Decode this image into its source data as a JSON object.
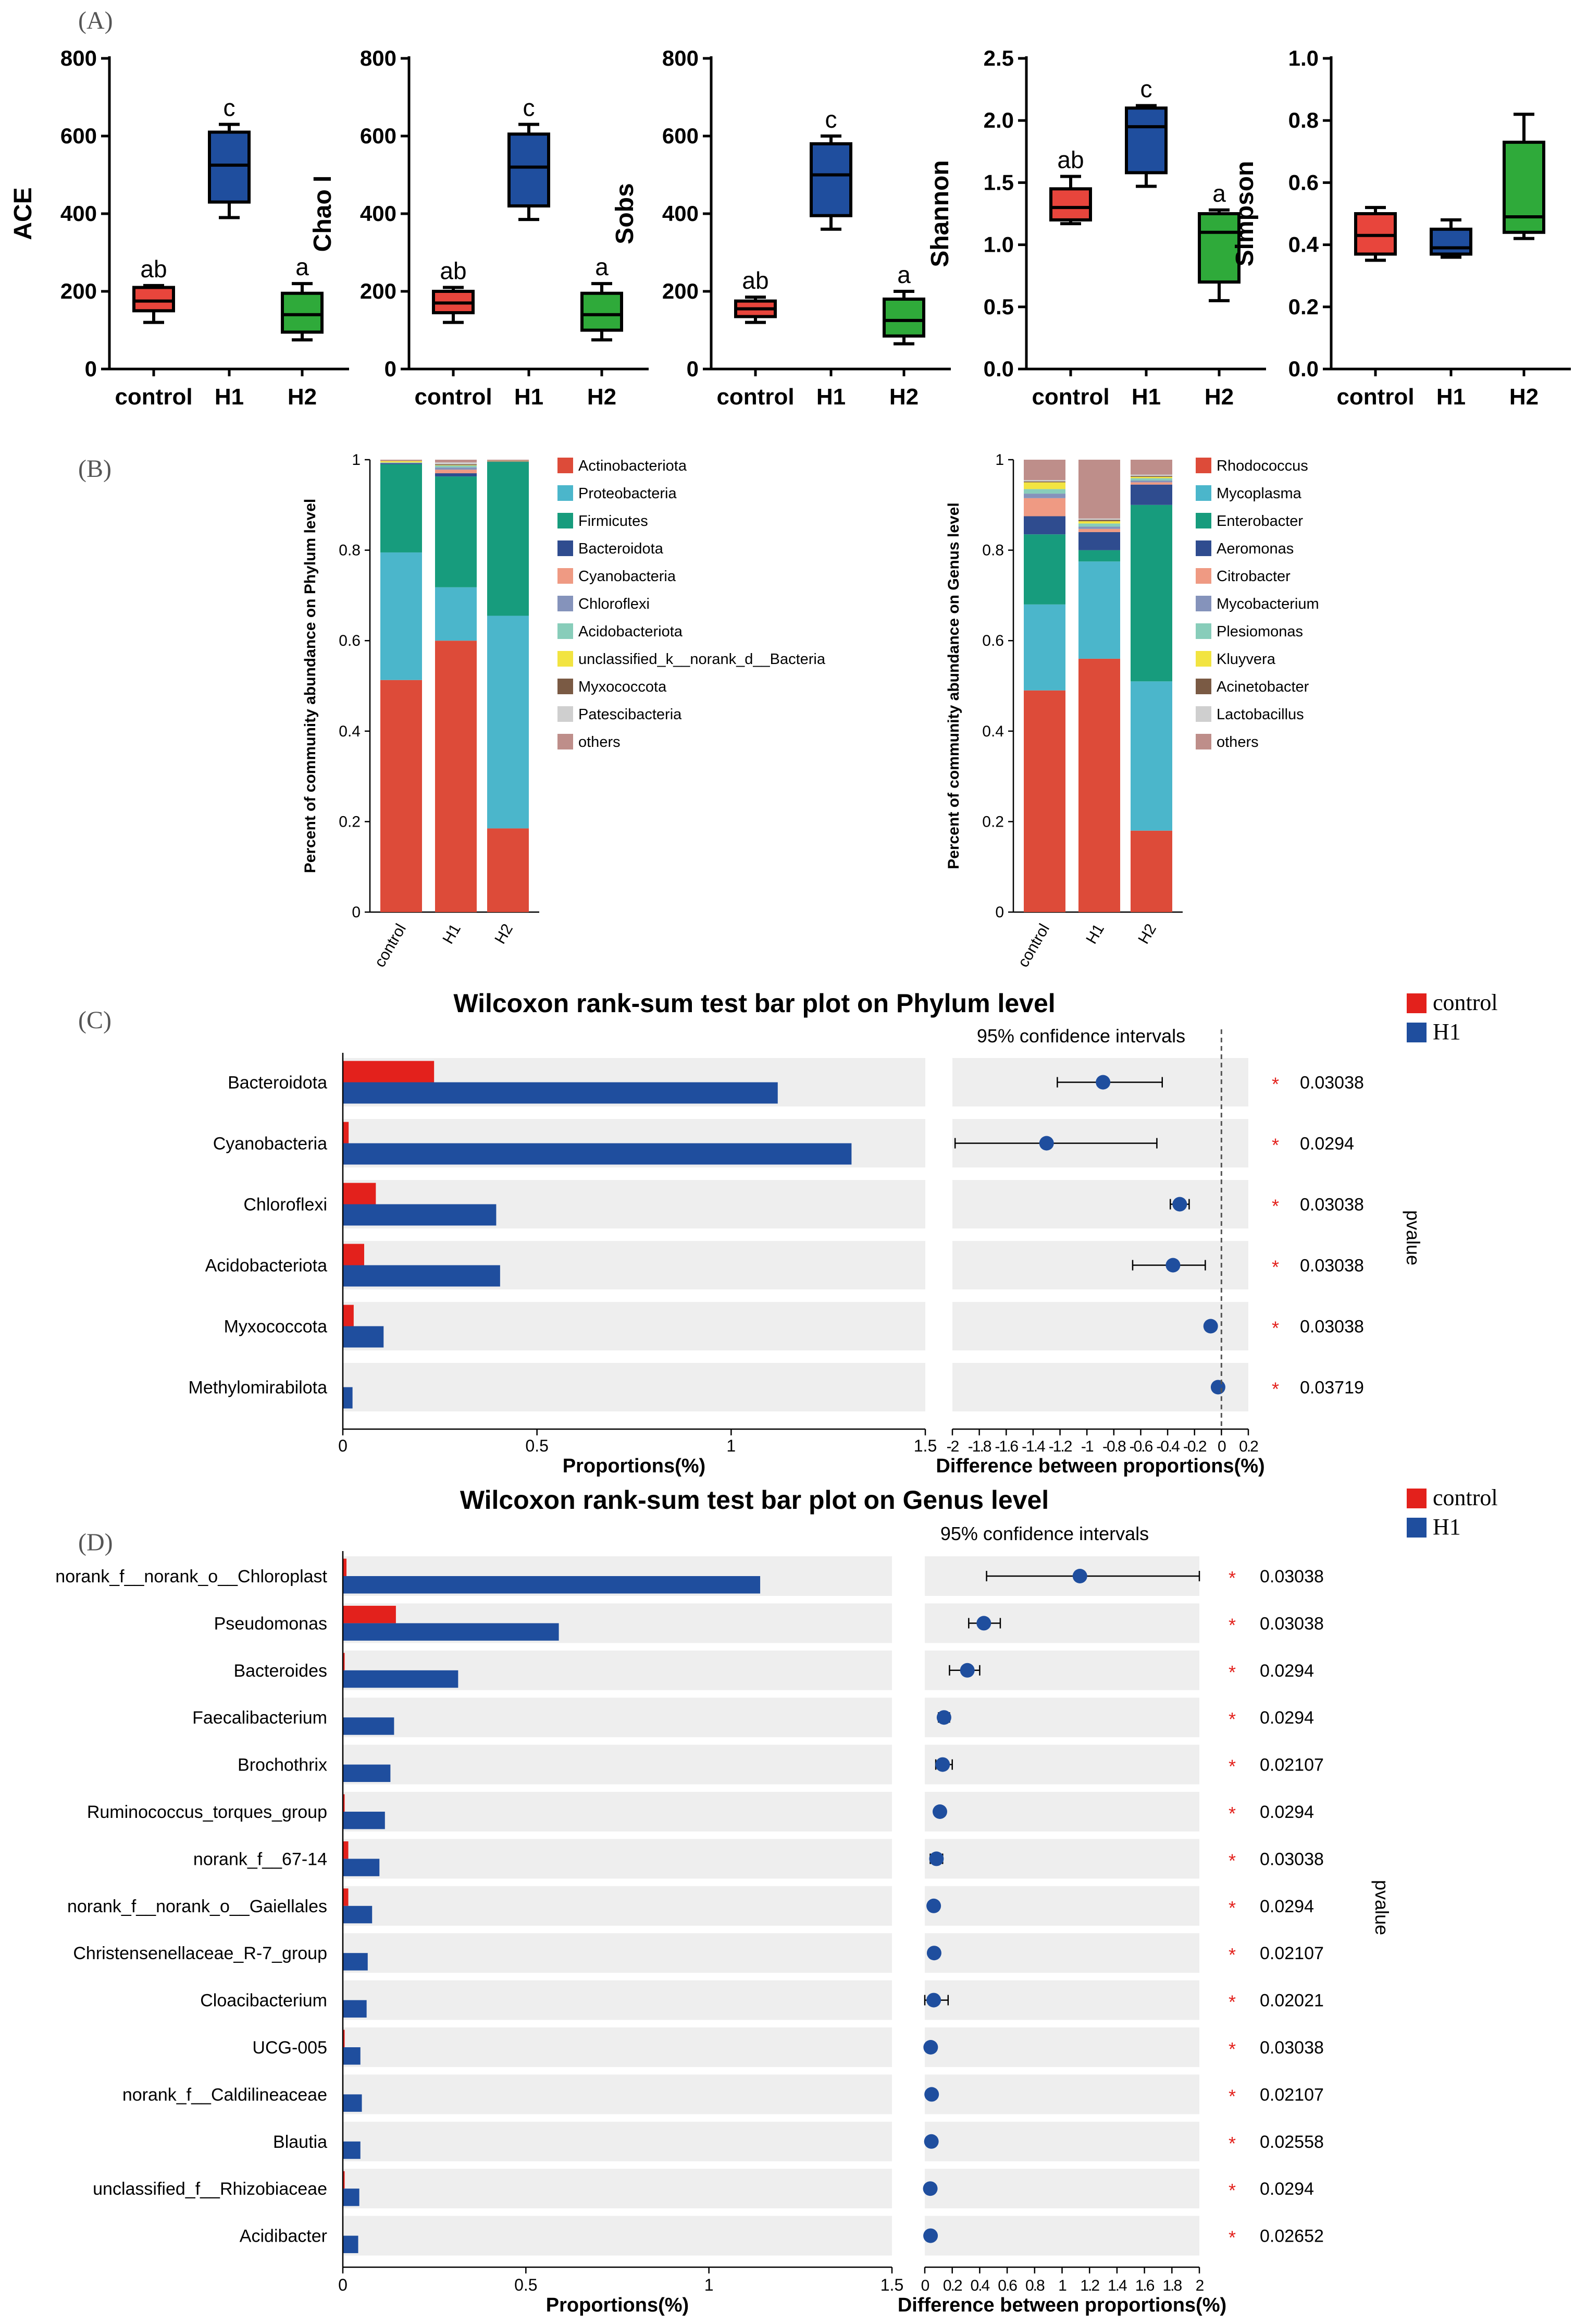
{
  "panel_labels": {
    "A": "(A)",
    "B": "(B)",
    "C": "(C)",
    "D": "(D)"
  },
  "colors": {
    "control": "#E8453C",
    "H1": "#1F4E9E",
    "H2": "#2FAA3A",
    "wilcox_control": "#E3211C",
    "wilcox_H1": "#1F4E9E",
    "stack": [
      "#DD4B39",
      "#4BB6CB",
      "#179C7D",
      "#2F4C8F",
      "#EF9A83",
      "#8593BB",
      "#88CDBA",
      "#F2E441",
      "#7A5A44",
      "#CFCFCF",
      "#BE8E8A"
    ]
  },
  "chart_data": [
    {
      "type": "box",
      "id": "ace",
      "ylabel": "ACE",
      "ylim": [
        0,
        800
      ],
      "yticks": [
        "0",
        "200",
        "400",
        "600",
        "800"
      ],
      "categories": [
        "control",
        "H1",
        "H2"
      ],
      "boxes": [
        {
          "min": 120,
          "q1": 150,
          "median": 175,
          "q3": 210,
          "max": 215,
          "letter": "ab"
        },
        {
          "min": 390,
          "q1": 430,
          "median": 525,
          "q3": 610,
          "max": 630,
          "letter": "c"
        },
        {
          "min": 75,
          "q1": 95,
          "median": 140,
          "q3": 195,
          "max": 220,
          "letter": "a"
        }
      ]
    },
    {
      "type": "box",
      "id": "chao",
      "ylabel": "Chao I",
      "ylim": [
        0,
        800
      ],
      "yticks": [
        "0",
        "200",
        "400",
        "600",
        "800"
      ],
      "categories": [
        "control",
        "H1",
        "H2"
      ],
      "boxes": [
        {
          "min": 120,
          "q1": 145,
          "median": 170,
          "q3": 200,
          "max": 210,
          "letter": "ab"
        },
        {
          "min": 385,
          "q1": 420,
          "median": 520,
          "q3": 605,
          "max": 630,
          "letter": "c"
        },
        {
          "min": 75,
          "q1": 100,
          "median": 140,
          "q3": 195,
          "max": 220,
          "letter": "a"
        }
      ]
    },
    {
      "type": "box",
      "id": "sobs",
      "ylabel": "Sobs",
      "ylim": [
        0,
        800
      ],
      "yticks": [
        "0",
        "200",
        "400",
        "600",
        "800"
      ],
      "categories": [
        "control",
        "H1",
        "H2"
      ],
      "boxes": [
        {
          "min": 120,
          "q1": 135,
          "median": 155,
          "q3": 175,
          "max": 185,
          "letter": "ab"
        },
        {
          "min": 360,
          "q1": 395,
          "median": 500,
          "q3": 580,
          "max": 600,
          "letter": "c"
        },
        {
          "min": 65,
          "q1": 85,
          "median": 125,
          "q3": 180,
          "max": 200,
          "letter": "a"
        }
      ]
    },
    {
      "type": "box",
      "id": "shannon",
      "ylabel": "Shannon",
      "ylim": [
        0,
        2.5
      ],
      "yticks": [
        "0.0",
        "0.5",
        "1.0",
        "1.5",
        "2.0",
        "2.5"
      ],
      "categories": [
        "control",
        "H1",
        "H2"
      ],
      "boxes": [
        {
          "min": 1.17,
          "q1": 1.2,
          "median": 1.3,
          "q3": 1.45,
          "max": 1.55,
          "letter": "ab"
        },
        {
          "min": 1.47,
          "q1": 1.58,
          "median": 1.95,
          "q3": 2.1,
          "max": 2.12,
          "letter": "c"
        },
        {
          "min": 0.55,
          "q1": 0.7,
          "median": 1.1,
          "q3": 1.25,
          "max": 1.28,
          "letter": "a"
        }
      ]
    },
    {
      "type": "box",
      "id": "simpson",
      "ylabel": "Simpson",
      "ylim": [
        0,
        1.0
      ],
      "yticks": [
        "0.0",
        "0.2",
        "0.4",
        "0.6",
        "0.8",
        "1.0"
      ],
      "categories": [
        "control",
        "H1",
        "H2"
      ],
      "boxes": [
        {
          "min": 0.35,
          "q1": 0.37,
          "median": 0.43,
          "q3": 0.5,
          "max": 0.52,
          "letter": ""
        },
        {
          "min": 0.36,
          "q1": 0.37,
          "median": 0.39,
          "q3": 0.45,
          "max": 0.48,
          "letter": ""
        },
        {
          "min": 0.42,
          "q1": 0.44,
          "median": 0.49,
          "q3": 0.73,
          "max": 0.82,
          "letter": ""
        }
      ]
    },
    {
      "type": "stacked-bar",
      "id": "phylum",
      "ylabel": "Percent of community abundance on Phylum level",
      "ylim": [
        0,
        1
      ],
      "yticks": [
        "0",
        "0.2",
        "0.4",
        "0.6",
        "0.8",
        "1"
      ],
      "categories": [
        "control",
        "H1",
        "H2"
      ],
      "legend": [
        "Actinobacteriota",
        "Proteobacteria",
        "Firmicutes",
        "Bacteroidota",
        "Cyanobacteria",
        "Chloroflexi",
        "Acidobacteriota",
        "unclassified_k__norank_d__Bacteria",
        "Myxococcota",
        "Patescibacteria",
        "others"
      ],
      "values": [
        [
          0.513,
          0.6,
          0.185
        ],
        [
          0.282,
          0.118,
          0.47
        ],
        [
          0.195,
          0.245,
          0.34
        ],
        [
          0.002,
          0.007,
          0.001
        ],
        [
          0.0,
          0.008,
          0.0
        ],
        [
          0.001,
          0.005,
          0.0
        ],
        [
          0.001,
          0.004,
          0.0
        ],
        [
          0.003,
          0.001,
          0.001
        ],
        [
          0.0,
          0.002,
          0.0
        ],
        [
          0.0,
          0.004,
          0.0
        ],
        [
          0.003,
          0.006,
          0.003
        ]
      ]
    },
    {
      "type": "stacked-bar",
      "id": "genus",
      "ylabel": "Percent of community abundance on Genus level",
      "ylim": [
        0,
        1
      ],
      "yticks": [
        "0",
        "0.2",
        "0.4",
        "0.6",
        "0.8",
        "1"
      ],
      "categories": [
        "control",
        "H1",
        "H2"
      ],
      "legend": [
        "Rhodococcus",
        "Mycoplasma",
        "Enterobacter",
        "Aeromonas",
        "Citrobacter",
        "Mycobacterium",
        "Plesiomonas",
        "Kluyvera",
        "Acinetobacter",
        "Lactobacillus",
        "others"
      ],
      "values": [
        [
          0.49,
          0.56,
          0.18
        ],
        [
          0.19,
          0.215,
          0.33
        ],
        [
          0.155,
          0.025,
          0.39
        ],
        [
          0.04,
          0.04,
          0.045
        ],
        [
          0.04,
          0.007,
          0.005
        ],
        [
          0.01,
          0.005,
          0.004
        ],
        [
          0.01,
          0.007,
          0.005
        ],
        [
          0.015,
          0.005,
          0.003
        ],
        [
          0.002,
          0.003,
          0.002
        ],
        [
          0.003,
          0.003,
          0.003
        ],
        [
          0.045,
          0.13,
          0.033
        ]
      ]
    },
    {
      "type": "wilcoxon",
      "id": "wilcox-phylum",
      "title": "Wilcoxon rank-sum test bar plot on Phylum level",
      "legend": [
        "control",
        "H1"
      ],
      "ci_label": "95% confidence intervals",
      "xlabel_left": "Proportions(%)",
      "xlabel_right": "Difference between proportions(%)",
      "pvalue_label": "pvalue",
      "left_ticks": [
        "0",
        "0.5",
        "1",
        "1.5"
      ],
      "left_max": 1.5,
      "right_ticks": [
        "-2",
        "-1.8",
        "-1.6",
        "-1.4",
        "-1.2",
        "-1",
        "-0.8",
        "-0.6",
        "-0.4",
        "-0.2",
        "0",
        "0.2"
      ],
      "right_range": [
        -2.0,
        0.2
      ],
      "rows": [
        {
          "name": "Bacteroidota",
          "control": 0.235,
          "H1": 1.12,
          "diff": -0.88,
          "lo": -1.22,
          "hi": -0.44,
          "p": "0.03038",
          "star": "*"
        },
        {
          "name": "Cyanobacteria",
          "control": 0.015,
          "H1": 1.31,
          "diff": -1.3,
          "lo": -1.98,
          "hi": -0.48,
          "p": "0.0294",
          "star": "*"
        },
        {
          "name": "Chloroflexi",
          "control": 0.085,
          "H1": 0.395,
          "diff": -0.31,
          "lo": -0.38,
          "hi": -0.24,
          "p": "0.03038",
          "star": "*"
        },
        {
          "name": "Acidobacteriota",
          "control": 0.055,
          "H1": 0.405,
          "diff": -0.36,
          "lo": -0.66,
          "hi": -0.12,
          "p": "0.03038",
          "star": "*"
        },
        {
          "name": "Myxococcota",
          "control": 0.028,
          "H1": 0.105,
          "diff": -0.08,
          "lo": -0.1,
          "hi": -0.06,
          "p": "0.03038",
          "star": "*"
        },
        {
          "name": "Methylomirabilota",
          "control": 0.0,
          "H1": 0.025,
          "diff": -0.025,
          "lo": -0.03,
          "hi": -0.02,
          "p": "0.03719",
          "star": "*"
        }
      ]
    },
    {
      "type": "wilcoxon",
      "id": "wilcox-genus",
      "title": "Wilcoxon rank-sum test bar plot on Genus level",
      "legend": [
        "control",
        "H1"
      ],
      "ci_label": "95% confidence intervals",
      "xlabel_left": "Proportions(%)",
      "xlabel_right": "Difference between proportions(%)",
      "pvalue_label": "pvalue",
      "left_ticks": [
        "0",
        "0.5",
        "1",
        "1.5"
      ],
      "left_max": 1.5,
      "right_ticks": [
        "0",
        "0.2",
        "0.4",
        "0.6",
        "0.8",
        "1",
        "1.2",
        "1.4",
        "1.6",
        "1.8",
        "2"
      ],
      "right_range": [
        0,
        2.0
      ],
      "rows": [
        {
          "name": "norank_f__norank_o__Chloroplast",
          "control": 0.01,
          "H1": 1.14,
          "diff": 1.13,
          "lo": 0.45,
          "hi": 2.0,
          "p": "0.03038",
          "star": "*"
        },
        {
          "name": "Pseudomonas",
          "control": 0.145,
          "H1": 0.59,
          "diff": 0.43,
          "lo": 0.32,
          "hi": 0.55,
          "p": "0.03038",
          "star": "*"
        },
        {
          "name": "Bacteroides",
          "control": 0.005,
          "H1": 0.315,
          "diff": 0.31,
          "lo": 0.18,
          "hi": 0.4,
          "p": "0.0294",
          "star": "*"
        },
        {
          "name": "Faecalibacterium",
          "control": 0.0,
          "H1": 0.14,
          "diff": 0.14,
          "lo": 0.1,
          "hi": 0.18,
          "p": "0.0294",
          "star": "*"
        },
        {
          "name": "Brochothrix",
          "control": 0.0,
          "H1": 0.13,
          "diff": 0.13,
          "lo": 0.08,
          "hi": 0.2,
          "p": "0.02107",
          "star": "*"
        },
        {
          "name": "Ruminococcus_torques_group",
          "control": 0.005,
          "H1": 0.115,
          "diff": 0.11,
          "lo": 0.08,
          "hi": 0.14,
          "p": "0.0294",
          "star": "*"
        },
        {
          "name": "norank_f__67-14",
          "control": 0.015,
          "H1": 0.1,
          "diff": 0.085,
          "lo": 0.04,
          "hi": 0.13,
          "p": "0.03038",
          "star": "*"
        },
        {
          "name": "norank_f__norank_o__Gaiellales",
          "control": 0.015,
          "H1": 0.08,
          "diff": 0.065,
          "lo": 0.04,
          "hi": 0.09,
          "p": "0.0294",
          "star": "*"
        },
        {
          "name": "Christensenellaceae_R-7_group",
          "control": 0.0,
          "H1": 0.068,
          "diff": 0.068,
          "lo": 0.04,
          "hi": 0.09,
          "p": "0.02107",
          "star": "*"
        },
        {
          "name": "Cloacibacterium",
          "control": 0.0,
          "H1": 0.065,
          "diff": 0.065,
          "lo": 0.0,
          "hi": 0.17,
          "p": "0.02021",
          "star": "*"
        },
        {
          "name": "UCG-005",
          "control": 0.005,
          "H1": 0.048,
          "diff": 0.043,
          "lo": 0.03,
          "hi": 0.06,
          "p": "0.03038",
          "star": "*"
        },
        {
          "name": "norank_f__Caldilineaceae",
          "control": 0.0,
          "H1": 0.052,
          "diff": 0.05,
          "lo": 0.03,
          "hi": 0.07,
          "p": "0.02107",
          "star": "*"
        },
        {
          "name": "Blautia",
          "control": 0.0,
          "H1": 0.048,
          "diff": 0.048,
          "lo": 0.03,
          "hi": 0.065,
          "p": "0.02558",
          "star": "*"
        },
        {
          "name": "unclassified_f__Rhizobiaceae",
          "control": 0.005,
          "H1": 0.045,
          "diff": 0.04,
          "lo": 0.02,
          "hi": 0.06,
          "p": "0.0294",
          "star": "*"
        },
        {
          "name": "Acidibacter",
          "control": 0.0,
          "H1": 0.042,
          "diff": 0.042,
          "lo": 0.025,
          "hi": 0.06,
          "p": "0.02652",
          "star": "*"
        }
      ]
    }
  ]
}
